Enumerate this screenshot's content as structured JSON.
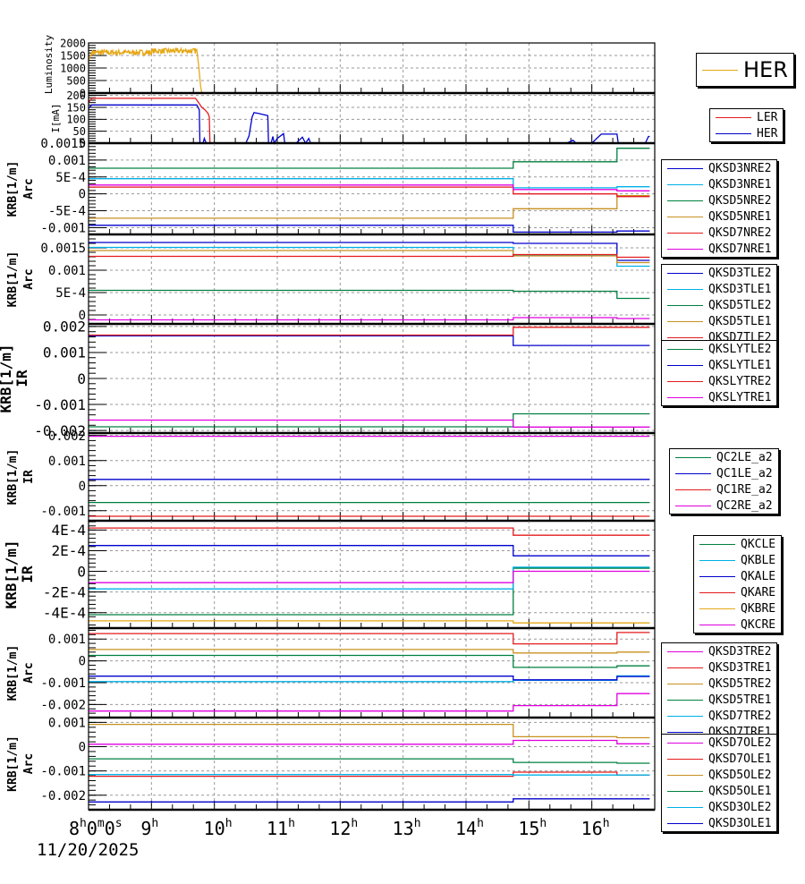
{
  "chart_data": [
    {
      "type": "line",
      "ylabel": "Luminosity",
      "ylim": [
        0,
        2000
      ],
      "yticks": [
        "2000",
        "1500",
        "1000",
        "500",
        "0"
      ],
      "legend": "right",
      "series": [
        {
          "name": "HER",
          "color": "#e6a817",
          "kind": "lumi"
        }
      ]
    },
    {
      "type": "line",
      "ylabel": "I[mA]",
      "ylim": [
        0,
        210
      ],
      "yticks": [
        "200",
        "150",
        "100",
        "50",
        "0"
      ],
      "legend": "right",
      "series": [
        {
          "name": "LER",
          "color": "#e41a1c",
          "kind": "ler"
        },
        {
          "name": "HER",
          "color": "#0000cc",
          "kind": "her"
        }
      ]
    },
    {
      "type": "line",
      "ylabel": "KRB[1/m]",
      "ylabel2": "Arc",
      "ylim": [
        -0.0012,
        0.0015
      ],
      "ytick_values": [
        0.0015,
        0.001,
        0.0005,
        0,
        -0.0005,
        -0.001
      ],
      "yticks": [
        "0.0015",
        "0.001",
        "5E-4",
        "0",
        "-5E-4",
        "-0.001"
      ],
      "legend": "right",
      "series": [
        {
          "name": "QKSD3NRE2",
          "color": "#0000cc",
          "steps": [
            [
              8,
              -0.00093
            ],
            [
              14.75,
              -0.00113
            ],
            [
              16.4,
              -0.0011
            ]
          ]
        },
        {
          "name": "QKSD3NRE1",
          "color": "#00b0e8",
          "steps": [
            [
              8,
              0.00045
            ],
            [
              14.75,
              0.00018
            ],
            [
              16.4,
              0.00021
            ]
          ]
        },
        {
          "name": "QKSD5NRE2",
          "color": "#008040",
          "steps": [
            [
              8,
              0.00076
            ],
            [
              14.75,
              0.00095
            ],
            [
              16.4,
              0.00135
            ]
          ]
        },
        {
          "name": "QKSD5NRE1",
          "color": "#c89020",
          "steps": [
            [
              8,
              -0.00072
            ],
            [
              14.75,
              -0.00044
            ],
            [
              16.4,
              -5e-05
            ]
          ]
        },
        {
          "name": "QKSD7NRE2",
          "color": "#e41a1c",
          "steps": [
            [
              8,
              0.0002
            ],
            [
              14.75,
              0.0
            ],
            [
              16.4,
              -8e-05
            ]
          ]
        },
        {
          "name": "QKSD7NRE1",
          "color": "#e000e0",
          "steps": [
            [
              8,
              0.00026
            ],
            [
              14.75,
              0.00013
            ],
            [
              16.4,
              9e-05
            ]
          ]
        }
      ]
    },
    {
      "type": "line",
      "ylabel": "KRB[1/m]",
      "ylabel2": "Arc",
      "ylim": [
        -0.0002,
        0.0018
      ],
      "ytick_values": [
        0.0015,
        0.001,
        0.0005,
        0
      ],
      "yticks": [
        "0.0015",
        "0.001",
        "5E-4",
        "0"
      ],
      "legend": "right",
      "series": [
        {
          "name": "QKSD3TLE2",
          "color": "#0000cc",
          "steps": [
            [
              8,
              0.00162
            ],
            [
              14.75,
              0.0016
            ],
            [
              16.4,
              0.00122
            ]
          ]
        },
        {
          "name": "QKSD3TLE1",
          "color": "#00b0e8",
          "steps": [
            [
              8,
              0.00151
            ],
            [
              14.75,
              0.00134
            ],
            [
              16.4,
              0.00109
            ]
          ]
        },
        {
          "name": "QKSD5TLE2",
          "color": "#008040",
          "steps": [
            [
              8,
              0.00055
            ],
            [
              14.75,
              0.00053
            ],
            [
              16.4,
              0.00037
            ]
          ]
        },
        {
          "name": "QKSD5TLE1",
          "color": "#c89020",
          "steps": [
            [
              8,
              0.00144
            ],
            [
              14.75,
              0.00132
            ],
            [
              16.4,
              0.00117
            ]
          ]
        },
        {
          "name": "QKSD7TLE2",
          "color": "#e41a1c",
          "steps": [
            [
              8,
              0.00131
            ],
            [
              14.75,
              0.00135
            ],
            [
              16.4,
              0.00129
            ]
          ]
        },
        {
          "name": "QKSD7TLE1",
          "color": "#e000e0",
          "steps": [
            [
              8,
              -0.00011
            ],
            [
              14.75,
              -6e-05
            ],
            [
              16.4,
              -8e-05
            ]
          ]
        }
      ]
    },
    {
      "type": "line",
      "ylabel": "KRB[1/m]",
      "ylabel2": "IR",
      "ylim": [
        -0.0021,
        0.0021
      ],
      "ytick_values": [
        0.002,
        0.001,
        0,
        -0.001,
        -0.002
      ],
      "yticks": [
        "0.002",
        "0.001",
        "0",
        "-0.001",
        "-0.002"
      ],
      "legend": "right",
      "series": [
        {
          "name": "QKSLYTLE2",
          "color": "#008040",
          "steps": [
            [
              8,
              -0.00186
            ],
            [
              14.75,
              -0.00136
            ]
          ]
        },
        {
          "name": "QKSLYTLE1",
          "color": "#0000cc",
          "steps": [
            [
              8,
              0.00164
            ],
            [
              14.75,
              0.00127
            ]
          ]
        },
        {
          "name": "QKSLYTRE2",
          "color": "#e41a1c",
          "steps": [
            [
              8,
              0.00167
            ],
            [
              14.75,
              0.00197
            ]
          ]
        },
        {
          "name": "QKSLYTRE1",
          "color": "#e000e0",
          "steps": [
            [
              8,
              -0.0016
            ],
            [
              14.75,
              -0.00187
            ]
          ]
        }
      ]
    },
    {
      "type": "line",
      "ylabel": "KRB[1/m]",
      "ylabel2": "IR",
      "ylim": [
        -0.0014,
        0.0021
      ],
      "ytick_values": [
        0.002,
        0.001,
        0,
        -0.001
      ],
      "yticks": [
        "0.002",
        "0.001",
        "0",
        "-0.001"
      ],
      "legend": "right",
      "series": [
        {
          "name": "QC2LE_a2",
          "color": "#008040",
          "steps": [
            [
              8,
              -0.00067
            ]
          ]
        },
        {
          "name": "QC1LE_a2",
          "color": "#0000cc",
          "steps": [
            [
              8,
              0.00025
            ]
          ]
        },
        {
          "name": "QC1RE_a2",
          "color": "#e41a1c",
          "steps": [
            [
              8,
              -0.00122
            ]
          ]
        },
        {
          "name": "QC2RE_a2",
          "color": "#e000e0",
          "steps": [
            [
              8,
              0.00197
            ]
          ]
        }
      ]
    },
    {
      "type": "line",
      "ylabel": "KRB[1/m]",
      "ylabel2": "IR",
      "ylim": [
        -0.00055,
        0.00049
      ],
      "ytick_values": [
        0.0004,
        0.0002,
        0,
        -0.0002,
        -0.0004
      ],
      "yticks": [
        "4E-4",
        "2E-4",
        "0",
        "-2E-4",
        "-4E-4"
      ],
      "legend": "right",
      "series": [
        {
          "name": "QKCLE",
          "color": "#008040",
          "steps": [
            [
              8,
              -0.00042
            ],
            [
              14.75,
              3e-05
            ]
          ]
        },
        {
          "name": "QKBLE",
          "color": "#00b0e8",
          "steps": [
            [
              8,
              -0.00017
            ],
            [
              14.75,
              4e-05
            ]
          ]
        },
        {
          "name": "QKALE",
          "color": "#0000cc",
          "steps": [
            [
              8,
              0.00025
            ],
            [
              14.75,
              0.00015
            ]
          ]
        },
        {
          "name": "QKARE",
          "color": "#e41a1c",
          "steps": [
            [
              8,
              0.00042
            ],
            [
              14.75,
              0.00035
            ]
          ]
        },
        {
          "name": "QKBRE",
          "color": "#e6a817",
          "steps": [
            [
              8,
              -0.00048
            ],
            [
              14.75,
              -0.0005
            ]
          ]
        },
        {
          "name": "QKCRE",
          "color": "#e000e0",
          "steps": [
            [
              8,
              -0.00011
            ],
            [
              14.75,
              0.0
            ]
          ]
        }
      ]
    },
    {
      "type": "line",
      "ylabel": "KRB[1/m]",
      "ylabel2": "Arc",
      "ylim": [
        -0.0026,
        0.0015
      ],
      "ytick_values": [
        0.001,
        0,
        -0.001,
        -0.002
      ],
      "yticks": [
        "0.001",
        "0",
        "-0.001",
        "-0.002"
      ],
      "legend": "right",
      "series": [
        {
          "name": "QKSD3TRE2",
          "color": "#e000e0",
          "steps": [
            [
              8,
              -0.0023
            ],
            [
              14.75,
              -0.00205
            ],
            [
              16.4,
              -0.0015
            ]
          ]
        },
        {
          "name": "QKSD3TRE1",
          "color": "#e41a1c",
          "steps": [
            [
              8,
              0.00125
            ],
            [
              14.75,
              0.00078
            ],
            [
              16.4,
              0.0013
            ]
          ]
        },
        {
          "name": "QKSD5TRE2",
          "color": "#c89020",
          "steps": [
            [
              8,
              0.00052
            ],
            [
              14.75,
              0.00036
            ],
            [
              16.4,
              0.0004
            ]
          ]
        },
        {
          "name": "QKSD5TRE1",
          "color": "#008040",
          "steps": [
            [
              8,
              0.00025
            ],
            [
              14.75,
              -0.0003
            ],
            [
              16.4,
              -0.00023
            ]
          ]
        },
        {
          "name": "QKSD7TRE2",
          "color": "#00b0e8",
          "steps": [
            [
              8,
              -0.00095
            ],
            [
              14.75,
              -0.00089
            ],
            [
              16.4,
              -0.00069
            ]
          ]
        },
        {
          "name": "QKSD7TRE1",
          "color": "#0000cc",
          "steps": [
            [
              8,
              -0.0007
            ],
            [
              14.75,
              -0.00087
            ],
            [
              16.4,
              -0.00072
            ]
          ]
        }
      ]
    },
    {
      "type": "line",
      "ylabel": "KRB[1/m]",
      "ylabel2": "Arc",
      "ylim": [
        -0.0026,
        0.0012
      ],
      "ytick_values": [
        0.001,
        0,
        -0.001,
        -0.002
      ],
      "yticks": [
        "0.001",
        "0",
        "-0.001",
        "-0.002"
      ],
      "legend": "right",
      "series": [
        {
          "name": "QKSD7OLE2",
          "color": "#e000e0",
          "steps": [
            [
              8,
              0.0001
            ],
            [
              14.75,
              0.00026
            ],
            [
              16.4,
              0.00012
            ]
          ]
        },
        {
          "name": "QKSD7OLE1",
          "color": "#e41a1c",
          "steps": [
            [
              8,
              -0.00122
            ],
            [
              14.75,
              -0.00105
            ],
            [
              16.4,
              -0.00117
            ]
          ]
        },
        {
          "name": "QKSD5OLE2",
          "color": "#c89020",
          "steps": [
            [
              8,
              0.00092
            ],
            [
              14.75,
              0.00041
            ],
            [
              16.4,
              0.00037
            ]
          ]
        },
        {
          "name": "QKSD5OLE1",
          "color": "#008040",
          "steps": [
            [
              8,
              -0.0005
            ],
            [
              14.75,
              -0.00065
            ],
            [
              16.4,
              -0.00068
            ]
          ]
        },
        {
          "name": "QKSD3OLE2",
          "color": "#00b0e8",
          "steps": [
            [
              8,
              -0.00115
            ],
            [
              14.75,
              -0.00117
            ],
            [
              16.4,
              -0.00117
            ]
          ]
        },
        {
          "name": "QKSD3OLE1",
          "color": "#0000cc",
          "steps": [
            [
              8,
              -0.00228
            ],
            [
              14.75,
              -0.00215
            ],
            [
              16.4,
              -0.00215
            ]
          ]
        }
      ]
    }
  ],
  "xaxis": {
    "xlim_hours": [
      8,
      17
    ],
    "major_ticks": [
      {
        "value": 8,
        "base": "8",
        "sup1": "h",
        "mid": "0",
        "sup2": "m",
        "tail": "0",
        "sup3": "s"
      },
      {
        "value": 9,
        "base": "9",
        "sup1": "h"
      },
      {
        "value": 10,
        "base": "10",
        "sup1": "h"
      },
      {
        "value": 11,
        "base": "11",
        "sup1": "h"
      },
      {
        "value": 12,
        "base": "12",
        "sup1": "h"
      },
      {
        "value": 13,
        "base": "13",
        "sup1": "h"
      },
      {
        "value": 14,
        "base": "14",
        "sup1": "h"
      },
      {
        "value": 15,
        "base": "15",
        "sup1": "h"
      },
      {
        "value": 16,
        "base": "16",
        "sup1": "h"
      }
    ],
    "date": "11/20/2025"
  }
}
